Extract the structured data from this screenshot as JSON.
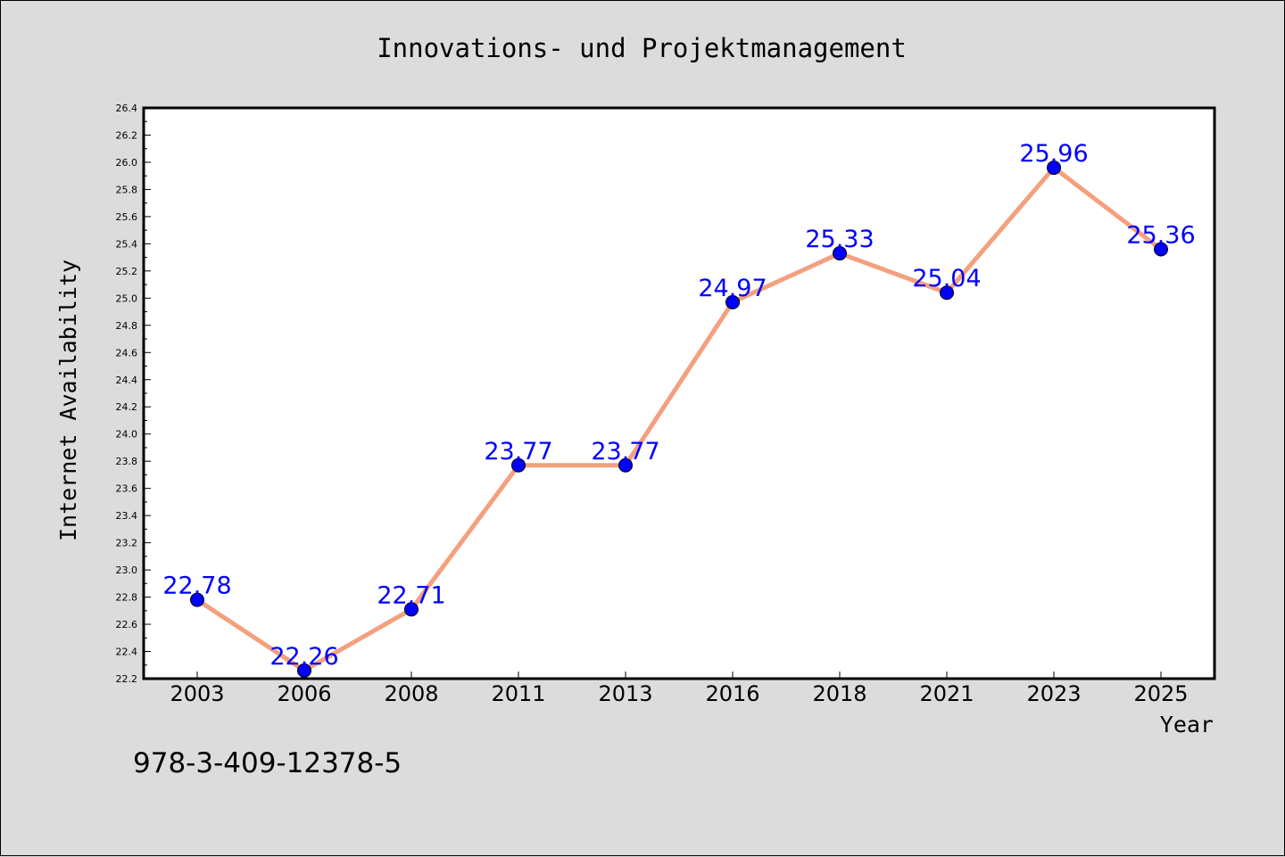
{
  "chart_data": {
    "type": "line",
    "title": "Innovations- und Projektmanagement",
    "xlabel": "Year",
    "ylabel": "Internet Availability",
    "categories": [
      "2003",
      "2006",
      "2008",
      "2011",
      "2013",
      "2016",
      "2018",
      "2021",
      "2023",
      "2025"
    ],
    "series": [
      {
        "values": [
          22.78,
          22.26,
          22.71,
          23.77,
          23.77,
          24.97,
          25.33,
          25.04,
          25.96,
          25.36
        ],
        "data_labels": [
          "22.78",
          "22.26",
          "22.71",
          "23.77",
          "23.77",
          "24.97",
          "25.33",
          "25.04",
          "25.96",
          "25.36"
        ]
      }
    ],
    "ylim": [
      22.2,
      26.4
    ],
    "yticks": [
      "22.2",
      "22.4",
      "22.6",
      "22.8",
      "23.0",
      "23.2",
      "23.4",
      "23.6",
      "23.8",
      "24.0",
      "24.2",
      "24.4",
      "24.6",
      "24.8",
      "25.0",
      "25.2",
      "25.4",
      "25.6",
      "25.8",
      "26.0",
      "26.2",
      "26.4"
    ],
    "grid": false,
    "line_color": "#f4a07e",
    "marker_color": "#0000ff",
    "label_color": "#0000ff",
    "plot_background": "#ffffff",
    "figure_background": "#dcdcdc"
  },
  "footer": {
    "isbn": "978-3-409-12378-5"
  }
}
